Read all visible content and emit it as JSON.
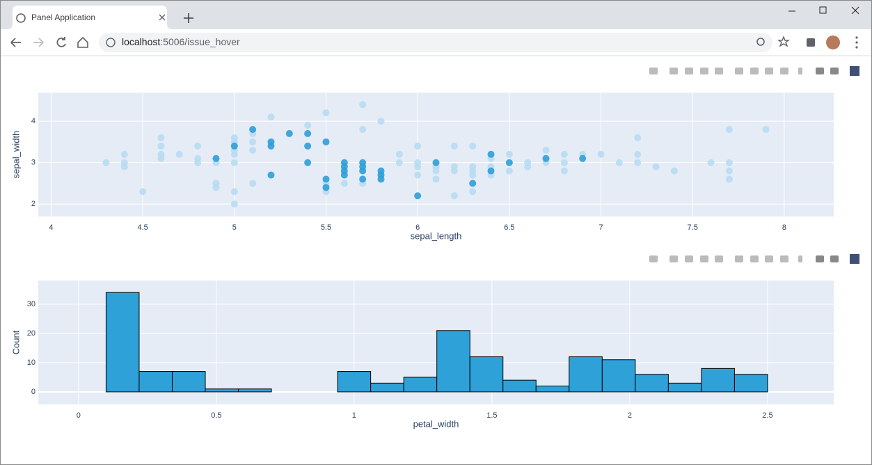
{
  "browser": {
    "tab_title": "Panel Application",
    "url_host": "localhost",
    "url_path": ":5006/issue_hover"
  },
  "chart_data": [
    {
      "type": "scatter",
      "x_label": "sepal_length",
      "y_label": "sepal_width",
      "xlim": [
        3.93,
        8.27
      ],
      "ylim": [
        1.7,
        4.69
      ],
      "xticks": [
        4,
        4.5,
        5,
        5.5,
        6,
        6.5,
        7,
        7.5,
        8
      ],
      "yticks": [
        2,
        3,
        4
      ],
      "grid": true,
      "series": [
        {
          "color": "#b8dcf2",
          "x": [
            4.3,
            4.4,
            4.4,
            4.4,
            4.5,
            4.6,
            4.6,
            4.6,
            4.6,
            4.7,
            4.8,
            4.8,
            4.8,
            4.9,
            4.9,
            4.9,
            5.0,
            5.0,
            5.0,
            5.0,
            5.0,
            5.0,
            5.0,
            5.1,
            5.1,
            5.1,
            5.1,
            5.2,
            5.4,
            5.5,
            5.5,
            5.5,
            5.6,
            5.7,
            5.7,
            5.7,
            5.8,
            5.9,
            5.9,
            6.0,
            6.0,
            6.0,
            6.0,
            6.1,
            6.1,
            6.1,
            6.2,
            6.2,
            6.2,
            6.2,
            6.3,
            6.3,
            6.3,
            6.3,
            6.3,
            6.4,
            6.4,
            6.4,
            6.5,
            6.5,
            6.6,
            6.6,
            6.7,
            6.7,
            6.8,
            6.8,
            6.8,
            6.9,
            7.0,
            7.1,
            7.2,
            7.2,
            7.2,
            7.3,
            7.4,
            7.6,
            7.7,
            7.7,
            7.7,
            7.7,
            7.9
          ],
          "values": [
            3.0,
            3.2,
            3.0,
            2.9,
            2.3,
            3.6,
            3.4,
            3.2,
            3.1,
            3.2,
            3.4,
            3.1,
            3.0,
            3.0,
            2.5,
            2.4,
            3.6,
            3.5,
            3.3,
            3.2,
            3.0,
            2.3,
            2.0,
            3.7,
            3.5,
            3.3,
            2.5,
            4.1,
            3.9,
            4.2,
            2.3,
            2.5,
            2.5,
            4.4,
            3.8,
            2.5,
            4.0,
            3.2,
            3.0,
            3.4,
            3.0,
            2.9,
            2.7,
            2.9,
            2.8,
            2.6,
            3.4,
            2.9,
            2.8,
            2.2,
            3.4,
            2.9,
            2.8,
            2.7,
            2.3,
            3.1,
            2.9,
            2.7,
            3.2,
            2.8,
            3.0,
            2.9,
            3.3,
            3.0,
            3.2,
            3.0,
            2.8,
            3.2,
            3.2,
            3.0,
            3.6,
            3.2,
            3.0,
            2.9,
            2.8,
            3.0,
            3.8,
            3.0,
            2.8,
            2.6,
            3.8
          ]
        },
        {
          "color": "#2e9fd8",
          "x": [
            4.9,
            5.0,
            5.1,
            5.2,
            5.2,
            5.2,
            5.3,
            5.4,
            5.4,
            5.4,
            5.5,
            5.5,
            5.5,
            5.6,
            5.6,
            5.6,
            5.6,
            5.7,
            5.7,
            5.7,
            5.7,
            5.8,
            5.8,
            5.8,
            6.0,
            6.1,
            6.3,
            6.4,
            6.4,
            6.5,
            6.7,
            6.9
          ],
          "values": [
            3.1,
            3.4,
            3.8,
            3.5,
            3.4,
            2.7,
            3.7,
            3.7,
            3.4,
            3.0,
            3.5,
            2.6,
            2.4,
            3.0,
            2.9,
            2.8,
            2.7,
            3.0,
            2.9,
            2.8,
            2.6,
            2.8,
            2.7,
            2.6,
            2.2,
            3.0,
            2.5,
            3.2,
            2.8,
            3.0,
            3.1,
            3.1
          ]
        }
      ]
    },
    {
      "type": "histogram",
      "x_label": "petal_width",
      "y_label": "Count",
      "xlim": [
        -0.146,
        2.74
      ],
      "ylim": [
        -4.3,
        38.1
      ],
      "xticks": [
        0,
        0.5,
        1,
        1.5,
        2,
        2.5
      ],
      "yticks": [
        0,
        10,
        20,
        30
      ],
      "grid": true,
      "color": "#2ea1d9",
      "bins": [
        0.1,
        0.22,
        0.34,
        0.46,
        0.58,
        0.7,
        0.82,
        0.94,
        1.06,
        1.18,
        1.3,
        1.42,
        1.54,
        1.66,
        1.78,
        1.9,
        2.02,
        2.14,
        2.26,
        2.38,
        2.5
      ],
      "values": [
        34,
        7,
        7,
        1,
        1,
        0,
        0,
        7,
        3,
        5,
        21,
        12,
        4,
        2,
        12,
        11,
        6,
        3,
        8,
        6
      ]
    }
  ]
}
